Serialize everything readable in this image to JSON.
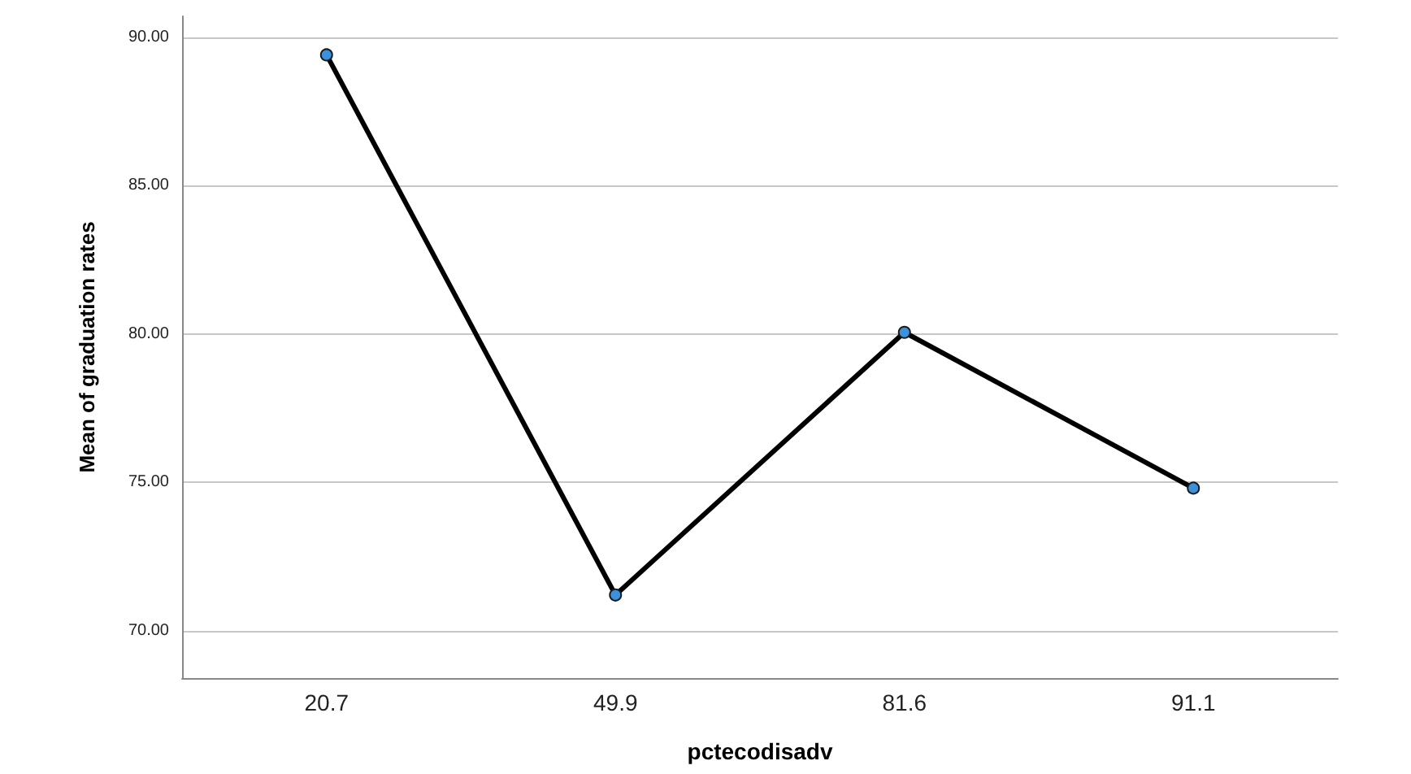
{
  "chart_data": {
    "type": "line",
    "xlabel": "pctecodisadv",
    "ylabel": "Mean of graduation rates",
    "categories": [
      "20.7",
      "49.9",
      "81.6",
      "91.1"
    ],
    "series": [
      {
        "color": "#000000",
        "values": [
          89.4,
          71.2,
          80.05,
          74.8
        ]
      }
    ],
    "ylim": [
      68.4,
      90.7
    ],
    "yticks": [
      {
        "value": 70,
        "label": "70.00"
      },
      {
        "value": 75,
        "label": "75.00"
      },
      {
        "value": 80,
        "label": "80.00"
      },
      {
        "value": 85,
        "label": "85.00"
      },
      {
        "value": 90,
        "label": "90.00"
      }
    ],
    "grid": "y",
    "marker": "circle",
    "line_style": "solid"
  }
}
